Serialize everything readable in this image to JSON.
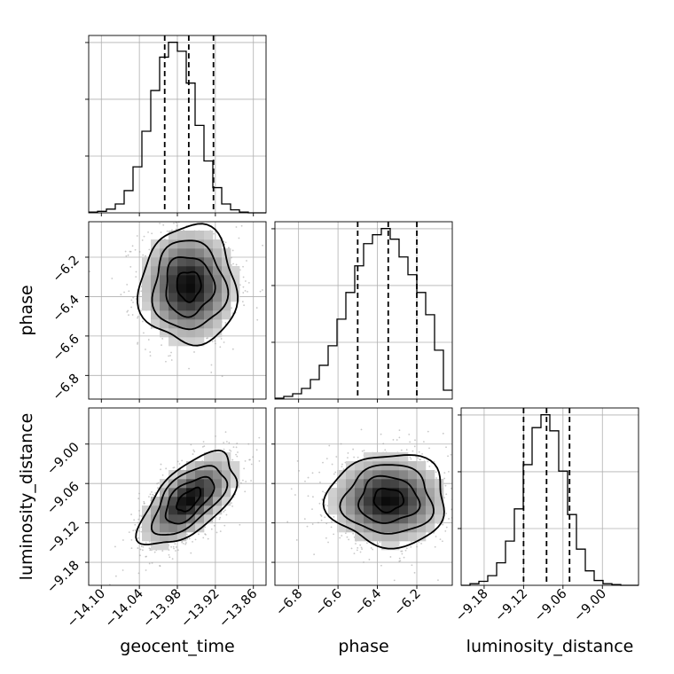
{
  "chart_data": {
    "type": "corner",
    "parameters": [
      "geocent_time",
      "phase",
      "luminosity_distance"
    ],
    "ranges": {
      "geocent_time": [
        -14.12,
        -13.84
      ],
      "phase": [
        -6.92,
        -6.02
      ],
      "luminosity_distance": [
        -9.215,
        -8.945
      ]
    },
    "ticks": {
      "geocent_time": [
        "−14.10",
        "−14.04",
        "−13.98",
        "−13.92",
        "−13.86"
      ],
      "phase": [
        "−6.8",
        "−6.6",
        "−6.4",
        "−6.2"
      ],
      "luminosity_distance": [
        "−9.18",
        "−9.12",
        "−9.06",
        "−9.00"
      ]
    },
    "tick_values": {
      "geocent_time": [
        -14.1,
        -14.04,
        -13.98,
        -13.92,
        -13.86
      ],
      "phase": [
        -6.8,
        -6.6,
        -6.4,
        -6.2
      ],
      "luminosity_distance": [
        -9.18,
        -9.12,
        -9.06,
        -9.0
      ]
    },
    "histograms": {
      "geocent_time": {
        "bin_edges": [
          -14.12,
          -14.106,
          -14.092,
          -14.078,
          -14.064,
          -14.05,
          -14.036,
          -14.022,
          -14.008,
          -13.994,
          -13.98,
          -13.966,
          -13.952,
          -13.938,
          -13.924,
          -13.91,
          -13.896,
          -13.882,
          -13.868,
          -13.854,
          -13.84
        ],
        "counts": [
          1,
          2,
          5,
          12,
          30,
          62,
          110,
          165,
          210,
          230,
          218,
          175,
          118,
          70,
          34,
          12,
          4,
          1,
          0,
          0
        ],
        "quantiles": [
          -14.0,
          -13.962,
          -13.923
        ]
      },
      "phase": {
        "bin_edges": [
          -6.92,
          -6.875,
          -6.83,
          -6.785,
          -6.74,
          -6.695,
          -6.65,
          -6.605,
          -6.56,
          -6.515,
          -6.47,
          -6.425,
          -6.38,
          -6.335,
          -6.29,
          -6.245,
          -6.2,
          -6.155,
          -6.11,
          -6.065,
          -6.02
        ],
        "counts": [
          1,
          3,
          6,
          12,
          22,
          38,
          60,
          90,
          120,
          150,
          175,
          185,
          192,
          180,
          160,
          140,
          120,
          95,
          55,
          10
        ],
        "quantiles": [
          -6.5,
          -6.345,
          -6.2
        ]
      },
      "luminosity_distance": {
        "bin_edges": [
          -9.215,
          -9.2015,
          -9.188,
          -9.1745,
          -9.161,
          -9.1475,
          -9.134,
          -9.1205,
          -9.107,
          -9.0935,
          -9.08,
          -9.0665,
          -9.053,
          -9.0395,
          -9.026,
          -9.0125,
          -8.999,
          -8.9855,
          -8.972,
          -8.9585,
          -8.945
        ],
        "counts": [
          0,
          2,
          5,
          12,
          28,
          55,
          95,
          150,
          196,
          212,
          192,
          142,
          88,
          45,
          18,
          6,
          2,
          1,
          0,
          0
        ],
        "quantiles": [
          -9.12,
          -9.085,
          -9.05
        ]
      }
    },
    "pairs": [
      {
        "x": "geocent_time",
        "y": "phase",
        "mean": [
          -13.962,
          -6.345
        ],
        "std": [
          0.038,
          0.15
        ],
        "corr": 0.0
      },
      {
        "x": "geocent_time",
        "y": "luminosity_distance",
        "mean": [
          -13.962,
          -9.085
        ],
        "std": [
          0.038,
          0.035
        ],
        "corr": 0.6
      },
      {
        "x": "phase",
        "y": "luminosity_distance",
        "mean": [
          -6.345,
          -9.085
        ],
        "std": [
          0.15,
          0.035
        ],
        "corr": 0.0
      }
    ],
    "contour_levels_sigma": [
      0.5,
      1.0,
      1.5,
      2.0
    ],
    "grid": true
  }
}
